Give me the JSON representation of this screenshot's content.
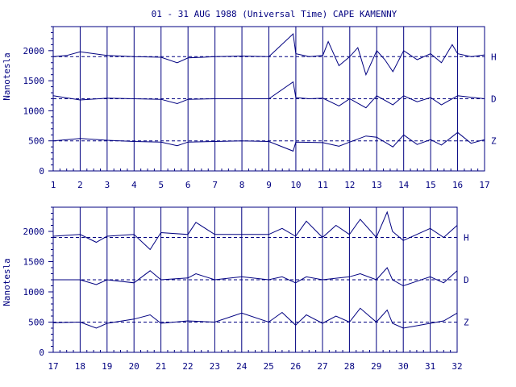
{
  "chart_data": {
    "type": "line",
    "title": "01 - 31 AUG 1988 (Universal Time) CAPE KAMENNY",
    "ylabel": "Nanotesla",
    "color": "#000080",
    "yticks": [
      0,
      500,
      1000,
      1500,
      2000
    ],
    "ylim": [
      0,
      2400
    ],
    "panels": [
      {
        "xlim": [
          1,
          17
        ],
        "xticks": [
          1,
          2,
          3,
          4,
          5,
          6,
          7,
          8,
          9,
          10,
          11,
          12,
          13,
          14,
          15,
          16,
          17
        ],
        "series": [
          {
            "name": "H",
            "baseline": 1900,
            "days": [
              1,
              1.5,
              2,
              3,
              4,
              5,
              5.6,
              6,
              7,
              8,
              9,
              9.9,
              10,
              10.5,
              11,
              11.2,
              11.6,
              12,
              12.3,
              12.6,
              13,
              13.3,
              13.6,
              14,
              14.5,
              15,
              15.4,
              15.8,
              16,
              16.5,
              17
            ],
            "values": [
              1900,
              1920,
              1980,
              1920,
              1900,
              1890,
              1800,
              1880,
              1900,
              1910,
              1900,
              2280,
              1950,
              1900,
              1920,
              2150,
              1750,
              1900,
              2050,
              1600,
              2000,
              1850,
              1650,
              2000,
              1850,
              1950,
              1800,
              2100,
              1950,
              1900,
              1930
            ]
          },
          {
            "name": "D",
            "baseline": 1200,
            "days": [
              1,
              2,
              3,
              4,
              5,
              5.6,
              6,
              7,
              8,
              9,
              9.9,
              10,
              10.5,
              11,
              11.6,
              12,
              12.6,
              13,
              13.6,
              14,
              14.5,
              15,
              15.4,
              16,
              17
            ],
            "values": [
              1250,
              1180,
              1210,
              1200,
              1190,
              1120,
              1190,
              1200,
              1200,
              1200,
              1480,
              1220,
              1200,
              1210,
              1080,
              1200,
              1050,
              1250,
              1100,
              1250,
              1150,
              1220,
              1100,
              1250,
              1200
            ]
          },
          {
            "name": "Z",
            "baseline": 500,
            "days": [
              1,
              2,
              3,
              4,
              5,
              5.6,
              6,
              7,
              8,
              9,
              9.9,
              10,
              11,
              11.6,
              12,
              12.6,
              13,
              13.6,
              14,
              14.5,
              15,
              15.4,
              16,
              16.5,
              17
            ],
            "values": [
              500,
              540,
              510,
              490,
              480,
              420,
              480,
              490,
              500,
              490,
              330,
              480,
              470,
              410,
              480,
              580,
              560,
              400,
              600,
              440,
              520,
              430,
              640,
              460,
              520
            ]
          }
        ]
      },
      {
        "xlim": [
          17,
          32
        ],
        "xticks": [
          17,
          18,
          19,
          20,
          21,
          22,
          23,
          24,
          25,
          26,
          27,
          28,
          29,
          30,
          31,
          32
        ],
        "series": [
          {
            "name": "H",
            "baseline": 1900,
            "days": [
              17,
              18,
              18.6,
              19,
              20,
              20.6,
              21,
              22,
              22.3,
              23,
              24,
              25,
              25.5,
              26,
              26.4,
              27,
              27.5,
              28,
              28.4,
              29,
              29.4,
              29.6,
              30,
              30.5,
              31,
              31.5,
              32
            ],
            "values": [
              1920,
              1950,
              1820,
              1920,
              1950,
              1700,
              1980,
              1950,
              2150,
              1950,
              1950,
              1950,
              2050,
              1920,
              2170,
              1900,
              2100,
              1950,
              2200,
              1900,
              2320,
              2000,
              1850,
              1950,
              2050,
              1900,
              2100
            ]
          },
          {
            "name": "D",
            "baseline": 1200,
            "days": [
              17,
              18,
              18.6,
              19,
              20,
              20.6,
              21,
              22,
              22.3,
              23,
              24,
              25,
              25.5,
              26,
              26.4,
              27,
              28,
              28.4,
              29,
              29.4,
              29.6,
              30,
              31,
              31.5,
              32
            ],
            "values": [
              1200,
              1200,
              1120,
              1200,
              1150,
              1350,
              1200,
              1230,
              1300,
              1200,
              1250,
              1200,
              1250,
              1150,
              1250,
              1200,
              1250,
              1300,
              1200,
              1400,
              1200,
              1100,
              1250,
              1150,
              1350
            ]
          },
          {
            "name": "Z",
            "baseline": 500,
            "days": [
              17,
              18,
              18.6,
              19,
              20,
              20.6,
              21,
              22,
              23,
              24,
              25,
              25.5,
              26,
              26.4,
              27,
              27.5,
              28,
              28.4,
              29,
              29.4,
              29.6,
              30,
              31,
              31.5,
              32
            ],
            "values": [
              490,
              500,
              400,
              480,
              550,
              620,
              480,
              520,
              500,
              650,
              500,
              660,
              450,
              620,
              480,
              600,
              500,
              730,
              500,
              700,
              480,
              400,
              480,
              520,
              650
            ]
          }
        ]
      }
    ]
  }
}
